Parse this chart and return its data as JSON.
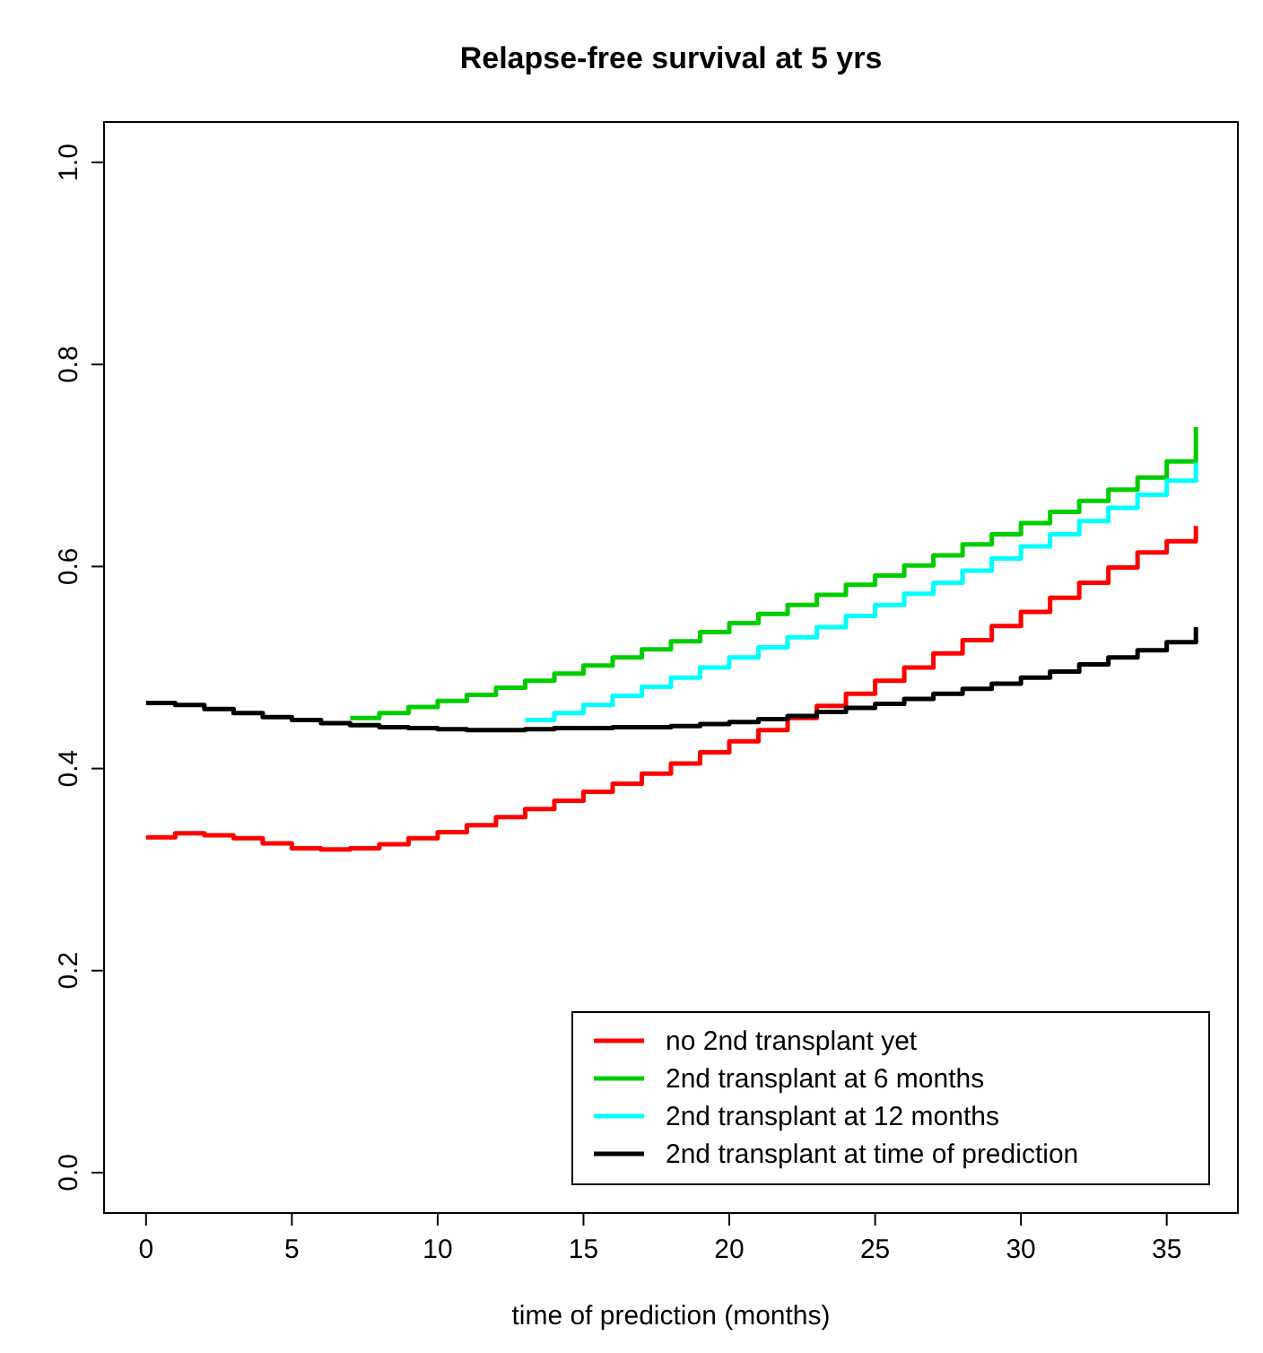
{
  "chart_data": {
    "type": "step",
    "title": "Relapse-free survival at 5 yrs",
    "xlabel": "time of prediction (months)",
    "xlim": [
      -1.44,
      37.44
    ],
    "ylim": [
      -0.04,
      1.04
    ],
    "xticks": [
      0,
      5,
      10,
      15,
      20,
      25,
      30,
      35
    ],
    "yticks": [
      {
        "value": 0,
        "label": "0.0"
      },
      0.2,
      0.4,
      0.6,
      0.8,
      {
        "value": 1,
        "label": "1.0"
      }
    ],
    "grid": false,
    "legend": "bottom right",
    "line_style": "solid",
    "series": [
      {
        "name": "no 2nd transplant yet",
        "color": "#ff0000",
        "x": [
          0,
          1,
          2,
          3,
          4,
          5,
          6,
          7,
          8,
          9,
          10,
          11,
          12,
          13,
          14,
          15,
          16,
          17,
          18,
          19,
          20,
          21,
          22,
          23,
          24,
          25,
          26,
          27,
          28,
          29,
          30,
          31,
          32,
          33,
          34,
          35,
          36
        ],
        "values": [
          0.332,
          0.336,
          0.334,
          0.331,
          0.326,
          0.321,
          0.32,
          0.321,
          0.325,
          0.331,
          0.337,
          0.344,
          0.352,
          0.36,
          0.368,
          0.377,
          0.385,
          0.395,
          0.405,
          0.416,
          0.427,
          0.438,
          0.45,
          0.462,
          0.474,
          0.487,
          0.5,
          0.514,
          0.527,
          0.541,
          0.555,
          0.569,
          0.584,
          0.599,
          0.614,
          0.625,
          0.64
        ]
      },
      {
        "name": "2nd transplant at 6 months",
        "color": "#00cd00",
        "x": [
          7,
          8,
          9,
          10,
          11,
          12,
          13,
          14,
          15,
          16,
          17,
          18,
          19,
          20,
          21,
          22,
          23,
          24,
          25,
          26,
          27,
          28,
          29,
          30,
          31,
          32,
          33,
          34,
          35,
          36
        ],
        "values": [
          0.45,
          0.455,
          0.461,
          0.467,
          0.473,
          0.48,
          0.487,
          0.494,
          0.502,
          0.51,
          0.518,
          0.526,
          0.535,
          0.544,
          0.553,
          0.562,
          0.572,
          0.582,
          0.591,
          0.601,
          0.611,
          0.622,
          0.632,
          0.643,
          0.654,
          0.665,
          0.676,
          0.688,
          0.704,
          0.738
        ]
      },
      {
        "name": "2nd transplant at 12 months",
        "color": "#00ffff",
        "x": [
          13,
          14,
          15,
          16,
          17,
          18,
          19,
          20,
          21,
          22,
          23,
          24,
          25,
          26,
          27,
          28,
          29,
          30,
          31,
          32,
          33,
          34,
          35,
          36
        ],
        "values": [
          0.448,
          0.455,
          0.463,
          0.472,
          0.481,
          0.49,
          0.5,
          0.51,
          0.52,
          0.53,
          0.54,
          0.551,
          0.562,
          0.573,
          0.584,
          0.596,
          0.608,
          0.62,
          0.632,
          0.645,
          0.658,
          0.671,
          0.685,
          0.703
        ]
      },
      {
        "name": "2nd transplant at time of prediction",
        "color": "#000000",
        "x": [
          0,
          1,
          2,
          3,
          4,
          5,
          6,
          7,
          8,
          9,
          10,
          11,
          12,
          13,
          14,
          15,
          16,
          17,
          18,
          19,
          20,
          21,
          22,
          23,
          24,
          25,
          26,
          27,
          28,
          29,
          30,
          31,
          32,
          33,
          34,
          35,
          36
        ],
        "values": [
          0.465,
          0.463,
          0.459,
          0.455,
          0.451,
          0.448,
          0.445,
          0.443,
          0.441,
          0.44,
          0.439,
          0.438,
          0.438,
          0.439,
          0.44,
          0.44,
          0.441,
          0.441,
          0.442,
          0.444,
          0.446,
          0.449,
          0.452,
          0.456,
          0.46,
          0.464,
          0.469,
          0.474,
          0.479,
          0.484,
          0.49,
          0.496,
          0.503,
          0.51,
          0.517,
          0.525,
          0.54
        ]
      }
    ]
  }
}
